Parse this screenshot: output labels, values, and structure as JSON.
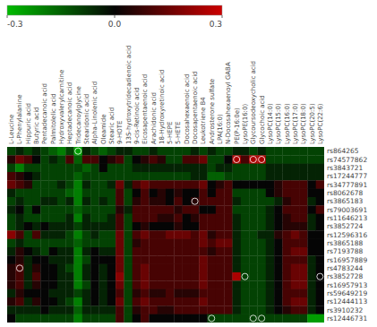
{
  "chart_data": {
    "type": "heatmap",
    "x": [
      "L-Leucine",
      "L-Phenylalanine",
      "Hippuric acid",
      "Butyric acid",
      "Pentadecanoic acid",
      "Palmitolelic acid",
      "Hydroxyvalerylcarnitine",
      "Heptadecanoic acid",
      "Tridecanoylglycine",
      "Stearidonic acid",
      "Alpha-Linolenic acid",
      "Oleamide",
      "Stearic acid",
      "9-HOTE",
      "13S-hydroxytridecadienoic acid",
      "9-cis-Retinoic acid",
      "Eicosapentaenoic acid",
      "Arachidonic acid",
      "18-Hydroxyretinoic acid",
      "5-HEPE",
      "5-HETE",
      "Docosahexaenoic acid",
      "Docosapentaenoic acid",
      "Leukotriene B4",
      "Androsterone sulfate",
      "LPA(16:0)",
      "N-Docosahexaenoyl GABA",
      "PE(P-16:0e)",
      "LysoPE(16:0)",
      "Glycoursodeoxycholic acid",
      "Glycochoic acid",
      "LysoPC(14:0)",
      "LysoPC(15:0)",
      "LysoPC(16:0)",
      "LysoPC(17:0)",
      "LysoPC(18:0)",
      "LysoPC(20:5)",
      "LysoPC(22:6)"
    ],
    "y": [
      "rs864265",
      "rs74577862",
      "rs3843721",
      "rs17244777",
      "rs34777891",
      "rs8062678",
      "rs3865183",
      "rs79003691",
      "rs11646213",
      "rs3852724",
      "rs12596316",
      "rs3865188",
      "rs7193788",
      "rs16957889",
      "rs4783244",
      "rs3852728",
      "rs16957913",
      "rs59649219",
      "rs12444113",
      "rs3910232",
      "rs12446731"
    ],
    "values": [
      [
        -0.1,
        -0.05,
        -0.1,
        -0.05,
        -0.1,
        -0.15,
        -0.2,
        -0.1,
        -0.25,
        -0.05,
        -0.1,
        -0.15,
        -0.1,
        -0.05,
        -0.05,
        -0.1,
        -0.1,
        -0.05,
        -0.1,
        -0.1,
        -0.1,
        -0.1,
        -0.05,
        -0.1,
        -0.05,
        -0.1,
        -0.1,
        -0.05,
        -0.05,
        -0.1,
        -0.05,
        -0.1,
        -0.1,
        -0.1,
        -0.1,
        -0.1,
        -0.1,
        -0.1
      ],
      [
        0.05,
        0.15,
        0.1,
        0.0,
        -0.1,
        -0.05,
        -0.1,
        0.1,
        -0.15,
        0.1,
        0.1,
        0.0,
        0.05,
        0.1,
        -0.1,
        0.0,
        0.05,
        0.1,
        0.05,
        -0.1,
        -0.1,
        0.1,
        0.1,
        0.15,
        -0.1,
        -0.1,
        0.0,
        0.25,
        0.1,
        0.25,
        0.25,
        -0.1,
        -0.1,
        -0.1,
        -0.1,
        -0.1,
        -0.1,
        -0.1
      ],
      [
        -0.1,
        -0.2,
        -0.1,
        -0.1,
        -0.1,
        -0.1,
        -0.1,
        -0.1,
        -0.1,
        -0.15,
        -0.1,
        0.0,
        -0.1,
        -0.1,
        -0.1,
        -0.05,
        -0.05,
        -0.05,
        -0.05,
        -0.05,
        -0.05,
        -0.05,
        -0.05,
        -0.05,
        -0.1,
        -0.05,
        -0.05,
        -0.1,
        -0.1,
        -0.1,
        -0.1,
        -0.05,
        -0.05,
        -0.05,
        -0.05,
        -0.05,
        -0.05,
        -0.05
      ],
      [
        0.1,
        0.05,
        0.0,
        -0.05,
        -0.1,
        -0.1,
        -0.1,
        -0.1,
        -0.15,
        -0.1,
        -0.1,
        -0.1,
        -0.1,
        -0.1,
        -0.1,
        -0.1,
        -0.1,
        -0.1,
        -0.1,
        -0.1,
        -0.1,
        -0.1,
        -0.05,
        -0.05,
        -0.15,
        -0.15,
        -0.1,
        -0.1,
        -0.1,
        -0.1,
        -0.1,
        -0.05,
        -0.05,
        -0.05,
        -0.05,
        -0.05,
        -0.05,
        -0.05
      ],
      [
        0.15,
        0.1,
        0.05,
        -0.1,
        -0.1,
        -0.1,
        -0.05,
        -0.1,
        -0.2,
        -0.05,
        -0.1,
        -0.1,
        -0.05,
        0.15,
        -0.05,
        0.1,
        0.15,
        0.1,
        0.1,
        0.1,
        0.1,
        0.1,
        0.1,
        0.15,
        0.0,
        0.05,
        0.1,
        0.0,
        0.0,
        0.0,
        0.0,
        0.0,
        0.05,
        0.1,
        0.1,
        0.1,
        0.0,
        0.1
      ],
      [
        -0.05,
        -0.1,
        -0.1,
        -0.1,
        -0.1,
        -0.1,
        -0.1,
        -0.15,
        -0.2,
        -0.1,
        -0.1,
        -0.1,
        -0.1,
        0.1,
        -0.1,
        0.0,
        0.1,
        0.0,
        0.05,
        0.0,
        0.05,
        0.0,
        0.0,
        0.1,
        0.0,
        0.1,
        0.1,
        -0.1,
        -0.1,
        -0.1,
        -0.1,
        0.0,
        0.05,
        0.1,
        0.1,
        0.1,
        0.0,
        0.0
      ],
      [
        -0.1,
        -0.05,
        -0.1,
        -0.1,
        -0.05,
        -0.05,
        -0.1,
        -0.05,
        -0.2,
        -0.05,
        -0.1,
        -0.05,
        -0.1,
        0.1,
        -0.1,
        0.05,
        0.1,
        0.05,
        0.05,
        0.0,
        0.1,
        0.0,
        0.05,
        0.1,
        0.1,
        0.1,
        0.1,
        -0.05,
        -0.1,
        -0.1,
        -0.1,
        -0.1,
        -0.05,
        0.05,
        0.1,
        0.1,
        -0.05,
        0.0
      ],
      [
        -0.05,
        0.0,
        -0.1,
        0.0,
        -0.1,
        -0.1,
        -0.1,
        -0.1,
        -0.15,
        -0.1,
        -0.1,
        -0.1,
        -0.1,
        0.05,
        -0.05,
        0.1,
        0.1,
        0.1,
        0.1,
        0.1,
        0.05,
        0.1,
        0.1,
        0.0,
        0.0,
        0.1,
        0.1,
        -0.1,
        -0.1,
        -0.1,
        -0.1,
        -0.05,
        0.0,
        0.1,
        0.1,
        0.1,
        0.0,
        0.1
      ],
      [
        -0.1,
        -0.05,
        -0.1,
        -0.1,
        -0.1,
        -0.1,
        -0.1,
        -0.05,
        -0.2,
        -0.05,
        -0.1,
        -0.1,
        -0.05,
        0.1,
        -0.1,
        0.1,
        0.1,
        0.1,
        0.05,
        0.05,
        0.1,
        0.0,
        0.05,
        0.1,
        0.1,
        0.1,
        0.1,
        -0.05,
        -0.1,
        -0.1,
        -0.1,
        -0.05,
        0.0,
        0.05,
        0.1,
        0.1,
        -0.05,
        0.0
      ],
      [
        -0.1,
        -0.05,
        0.0,
        -0.05,
        0.0,
        -0.05,
        -0.05,
        -0.05,
        -0.1,
        -0.05,
        -0.05,
        -0.05,
        -0.05,
        0.1,
        -0.1,
        0.0,
        0.05,
        0.0,
        0.0,
        0.0,
        0.05,
        0.0,
        0.0,
        0.1,
        0.1,
        0.1,
        0.1,
        -0.05,
        -0.1,
        -0.1,
        -0.1,
        -0.05,
        0.0,
        0.05,
        0.05,
        0.05,
        -0.05,
        0.0
      ],
      [
        0.2,
        0.1,
        -0.1,
        0.1,
        -0.05,
        -0.05,
        -0.05,
        -0.1,
        -0.2,
        -0.1,
        -0.05,
        -0.1,
        -0.1,
        0.15,
        -0.1,
        0.1,
        0.15,
        0.1,
        0.1,
        0.15,
        0.15,
        0.15,
        0.1,
        0.15,
        0.05,
        0.1,
        0.1,
        -0.05,
        -0.1,
        -0.1,
        -0.05,
        -0.05,
        0.05,
        0.1,
        0.15,
        0.1,
        0.0,
        0.0
      ],
      [
        -0.1,
        -0.05,
        -0.1,
        -0.1,
        -0.1,
        -0.1,
        -0.1,
        -0.1,
        -0.15,
        -0.1,
        -0.1,
        -0.1,
        -0.1,
        0.15,
        -0.1,
        0.05,
        0.1,
        0.1,
        0.1,
        0.1,
        0.1,
        0.1,
        0.1,
        0.15,
        0.1,
        0.15,
        0.15,
        -0.05,
        -0.1,
        -0.1,
        -0.1,
        -0.05,
        0.0,
        0.1,
        0.1,
        0.1,
        0.0,
        0.0
      ],
      [
        -0.05,
        0.05,
        0.0,
        -0.05,
        -0.1,
        0.0,
        -0.05,
        -0.05,
        -0.2,
        -0.05,
        0.0,
        -0.05,
        -0.05,
        0.15,
        -0.1,
        0.1,
        0.1,
        0.1,
        0.1,
        0.1,
        0.1,
        0.1,
        0.1,
        0.1,
        0.05,
        0.1,
        0.1,
        -0.05,
        -0.1,
        -0.1,
        -0.1,
        -0.05,
        0.0,
        0.1,
        0.15,
        0.15,
        0.0,
        0.0
      ],
      [
        0.0,
        0.05,
        -0.05,
        0.0,
        0.0,
        -0.05,
        -0.05,
        -0.05,
        -0.2,
        -0.1,
        0.0,
        0.0,
        0.0,
        0.15,
        -0.1,
        0.1,
        0.1,
        0.1,
        0.1,
        0.1,
        0.1,
        0.1,
        0.1,
        0.15,
        0.1,
        0.1,
        0.1,
        -0.05,
        -0.1,
        -0.1,
        -0.1,
        -0.05,
        0.0,
        0.1,
        0.1,
        0.1,
        -0.05,
        0.0
      ],
      [
        0.05,
        0.1,
        -0.05,
        0.05,
        0.0,
        0.0,
        -0.05,
        -0.1,
        -0.2,
        -0.05,
        0.0,
        -0.05,
        0.0,
        0.15,
        -0.1,
        0.1,
        0.15,
        0.1,
        0.1,
        0.1,
        0.1,
        0.1,
        0.1,
        0.15,
        0.1,
        0.1,
        0.1,
        -0.05,
        -0.1,
        -0.1,
        -0.1,
        -0.05,
        0.0,
        0.1,
        0.15,
        0.15,
        -0.05,
        0.0
      ],
      [
        0.05,
        0.1,
        -0.05,
        0.1,
        0.0,
        0.0,
        -0.05,
        -0.05,
        -0.2,
        -0.05,
        0.0,
        -0.05,
        0.0,
        0.2,
        -0.1,
        0.1,
        0.15,
        0.1,
        0.1,
        0.1,
        0.1,
        0.1,
        0.1,
        0.15,
        0.1,
        0.1,
        0.1,
        0.25,
        -0.1,
        -0.1,
        -0.1,
        -0.05,
        0.0,
        0.1,
        0.15,
        0.15,
        -0.05,
        0.0
      ],
      [
        0.05,
        0.1,
        -0.05,
        0.05,
        0.0,
        0.0,
        -0.05,
        -0.05,
        -0.2,
        -0.1,
        0.0,
        -0.05,
        0.0,
        0.15,
        -0.1,
        0.1,
        0.15,
        0.1,
        0.1,
        0.1,
        0.1,
        0.1,
        0.1,
        0.15,
        0.1,
        0.1,
        0.1,
        -0.05,
        -0.1,
        -0.1,
        -0.1,
        -0.05,
        0.0,
        0.1,
        0.15,
        0.15,
        -0.05,
        0.0
      ],
      [
        -0.05,
        0.05,
        0.0,
        0.0,
        0.0,
        -0.05,
        -0.05,
        -0.05,
        -0.1,
        -0.05,
        0.0,
        -0.05,
        0.0,
        0.1,
        -0.1,
        0.05,
        0.1,
        0.05,
        0.05,
        0.1,
        0.05,
        0.05,
        0.05,
        0.1,
        0.1,
        0.1,
        0.1,
        -0.05,
        -0.1,
        -0.1,
        -0.1,
        -0.05,
        0.0,
        0.1,
        0.1,
        0.1,
        -0.05,
        0.0
      ],
      [
        0.05,
        0.1,
        -0.05,
        0.05,
        0.0,
        0.0,
        -0.05,
        -0.1,
        -0.2,
        -0.05,
        0.0,
        -0.05,
        0.0,
        0.15,
        -0.1,
        0.1,
        0.15,
        0.1,
        0.1,
        0.1,
        0.1,
        0.1,
        0.1,
        0.15,
        0.1,
        0.1,
        0.1,
        -0.05,
        -0.1,
        -0.1,
        -0.1,
        -0.05,
        0.0,
        0.1,
        0.15,
        0.15,
        -0.05,
        0.0
      ],
      [
        -0.05,
        -0.05,
        -0.05,
        -0.05,
        0.0,
        -0.05,
        -0.05,
        -0.05,
        -0.15,
        -0.05,
        -0.05,
        -0.05,
        -0.05,
        0.1,
        -0.1,
        0.05,
        0.1,
        0.1,
        0.05,
        0.05,
        0.1,
        0.1,
        0.1,
        0.1,
        0.1,
        0.1,
        0.1,
        -0.05,
        -0.1,
        -0.1,
        -0.1,
        -0.05,
        0.0,
        0.05,
        0.1,
        0.1,
        -0.05,
        0.0
      ],
      [
        0.0,
        -0.1,
        -0.1,
        -0.1,
        -0.1,
        -0.1,
        -0.1,
        -0.1,
        -0.2,
        -0.1,
        -0.1,
        -0.1,
        -0.1,
        0.1,
        -0.1,
        0.0,
        0.1,
        0.0,
        0.0,
        0.0,
        0.0,
        0.0,
        0.0,
        0.0,
        -0.1,
        -0.1,
        -0.1,
        -0.1,
        -0.1,
        -0.1,
        -0.1,
        -0.1,
        -0.1,
        -0.1,
        -0.1,
        -0.1,
        -0.25,
        -0.25
      ]
    ],
    "significant": [
      [
        0,
        8
      ],
      [
        1,
        27
      ],
      [
        1,
        29
      ],
      [
        1,
        30
      ],
      [
        6,
        22
      ],
      [
        14,
        1
      ],
      [
        15,
        28
      ],
      [
        15,
        37
      ],
      [
        20,
        24
      ],
      [
        20,
        29
      ],
      [
        20,
        30
      ]
    ],
    "colors": [
      "#00bb00",
      "#050505",
      "#cc0000"
    ],
    "colorbar_range": [
      -0.3,
      0.3
    ],
    "colorbar_ticks": [
      -0.3,
      {
        "value": 0,
        "label": "0.0"
      },
      0.3
    ]
  }
}
